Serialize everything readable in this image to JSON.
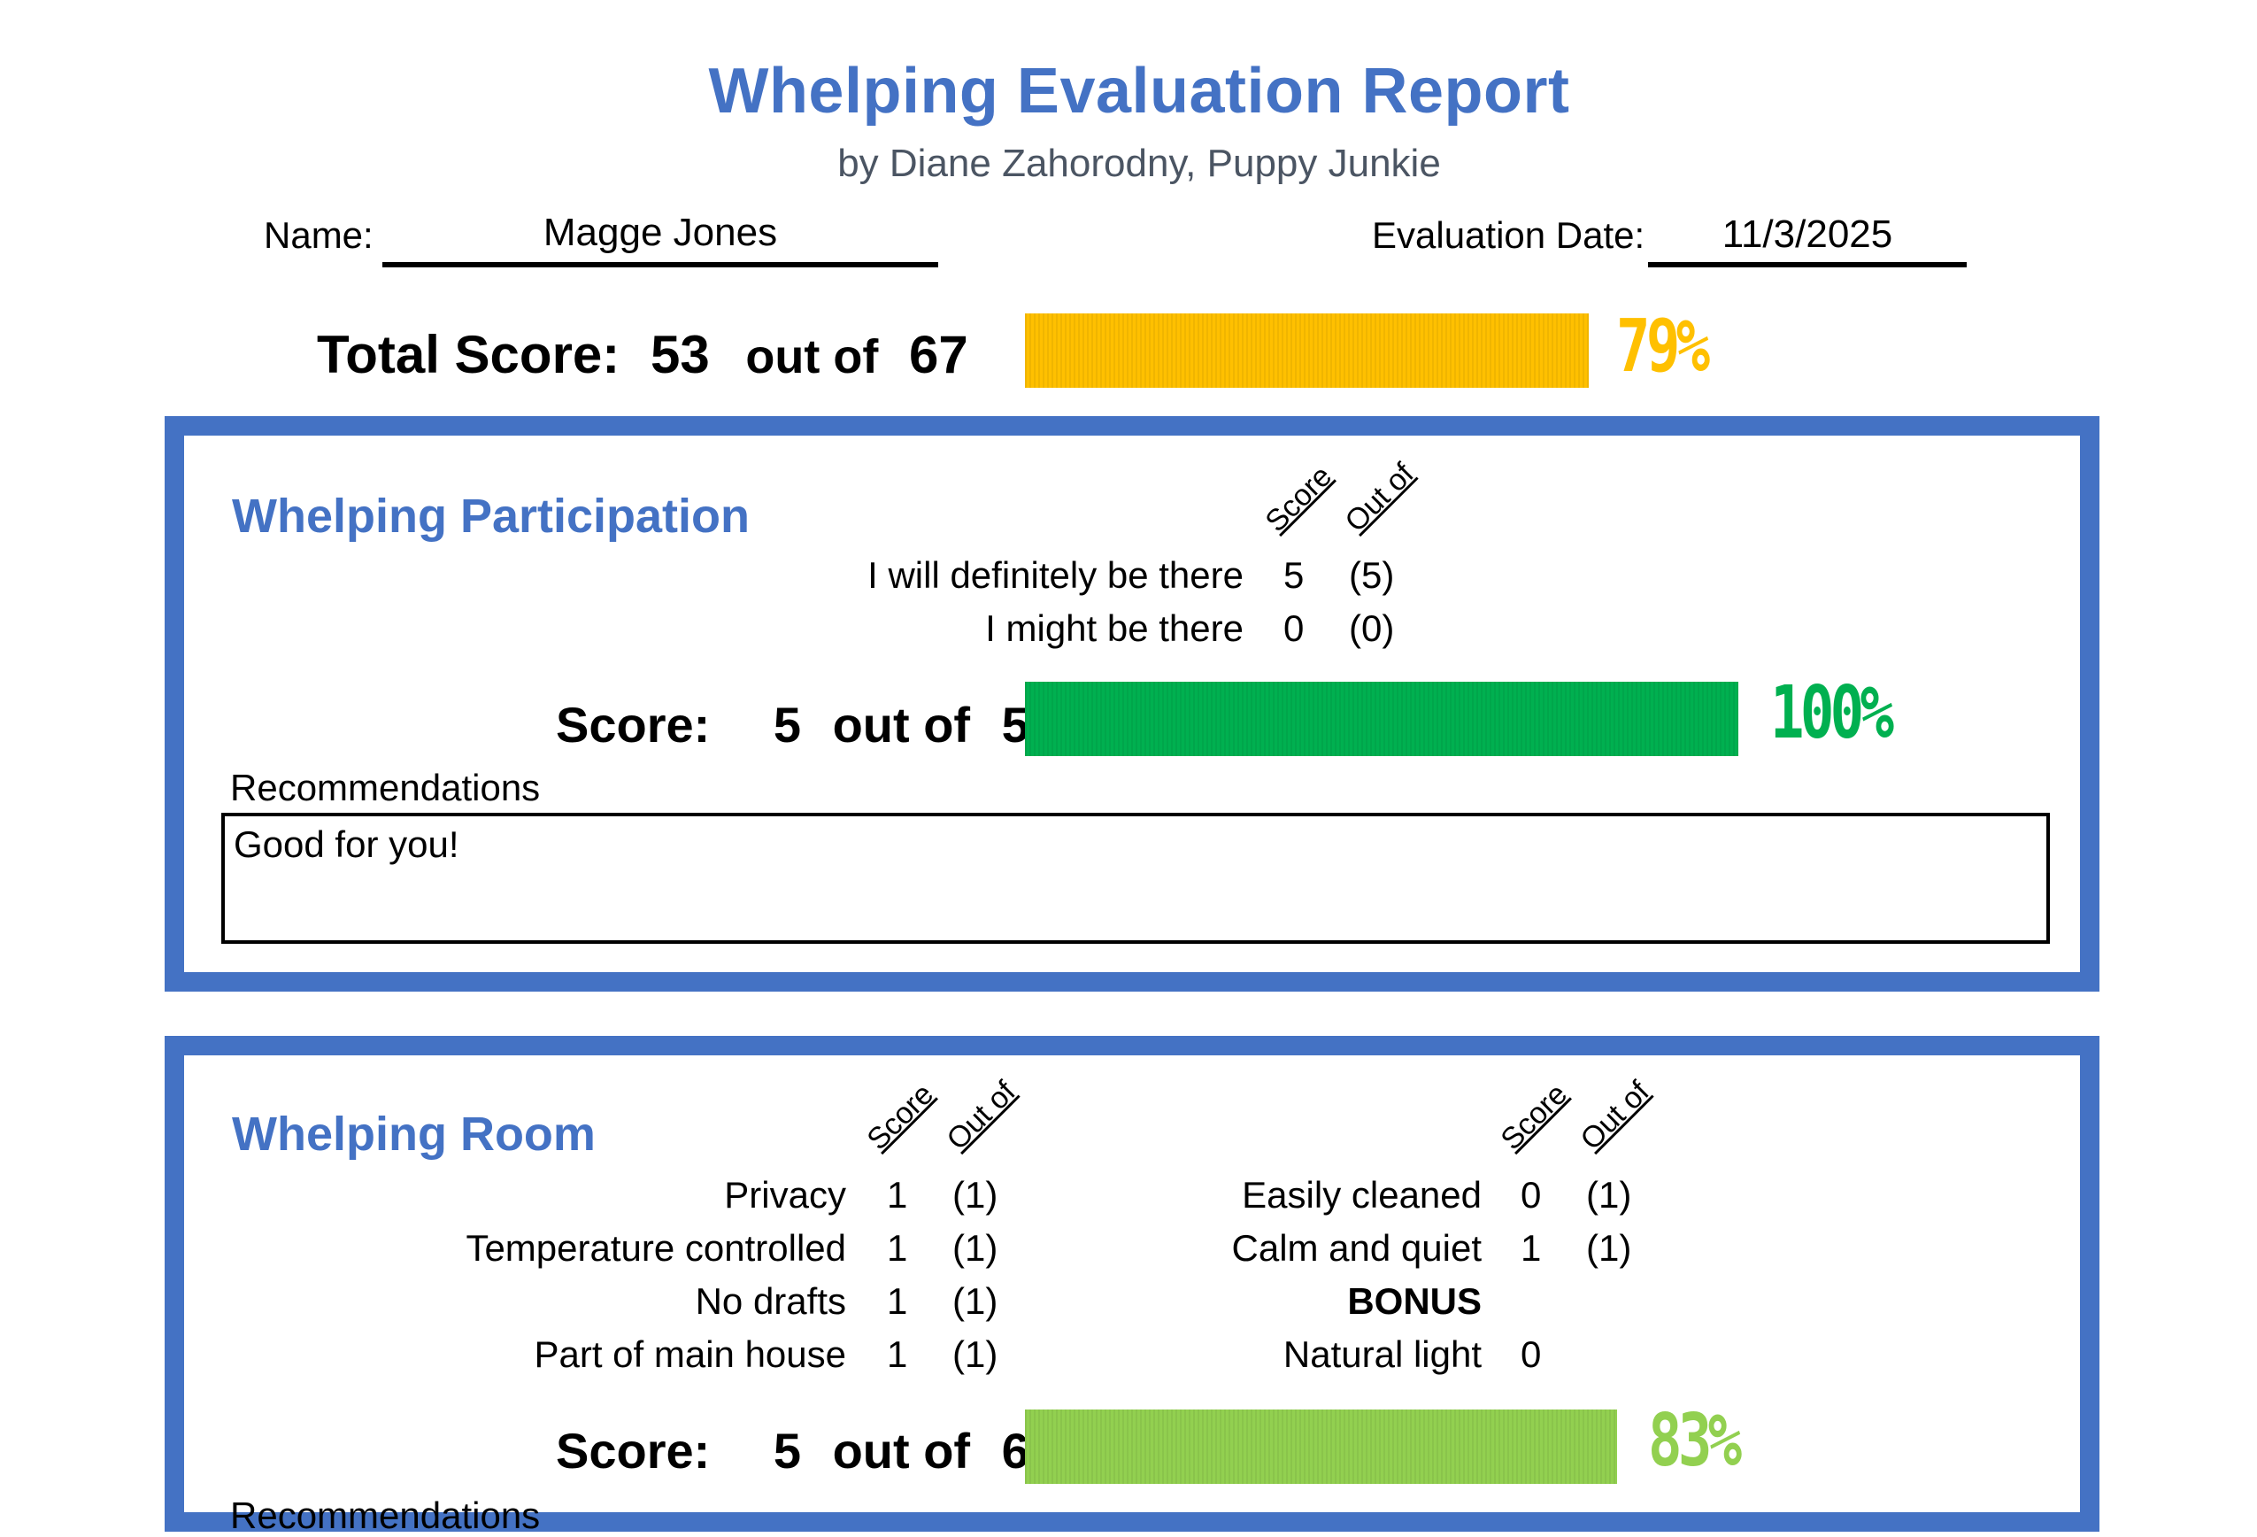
{
  "header": {
    "title": "Whelping Evaluation Report",
    "subtitle": "by Diane Zahorodny, Puppy Junkie"
  },
  "fields": {
    "name_label": "Name:",
    "name_value": "Magge Jones",
    "date_label": "Evaluation Date:",
    "date_value": "11/3/2025"
  },
  "total": {
    "label": "Total Score:",
    "score": "53",
    "out_of_label": "out of",
    "max": "67",
    "percent_text": "79%",
    "fraction": 0.79,
    "color": "#ffc000"
  },
  "col_headers": {
    "score": "Score",
    "out_of": "Out of"
  },
  "participation": {
    "title": "Whelping Participation",
    "items": [
      {
        "label": "I will definitely be there",
        "score": "5",
        "max": "(5)"
      },
      {
        "label": "I might be there",
        "score": "0",
        "max": "(0)"
      }
    ],
    "score_label": "Score:",
    "score": "5",
    "out_of_label": "out of",
    "max": "5",
    "percent_text": "100%",
    "fraction": 1.0,
    "color": "#00b050",
    "rec_label": "Recommendations",
    "recommendation": "Good for you!"
  },
  "room": {
    "title": "Whelping Room",
    "left_items": [
      {
        "label": "Privacy",
        "score": "1",
        "max": "(1)"
      },
      {
        "label": "Temperature controlled",
        "score": "1",
        "max": "(1)"
      },
      {
        "label": "No drafts",
        "score": "1",
        "max": "(1)"
      },
      {
        "label": "Part of main house",
        "score": "1",
        "max": "(1)"
      }
    ],
    "right_items": [
      {
        "label": "Easily cleaned",
        "score": "0",
        "max": "(1)"
      },
      {
        "label": "Calm and quiet",
        "score": "1",
        "max": "(1)"
      }
    ],
    "bonus_label": "BONUS",
    "bonus_item": {
      "label": "Natural light",
      "score": "0"
    },
    "score_label": "Score:",
    "score": "5",
    "out_of_label": "out of",
    "max": "6",
    "percent_text": "83%",
    "fraction": 0.83,
    "color": "#92d050",
    "rec_label": "Recommendations"
  }
}
